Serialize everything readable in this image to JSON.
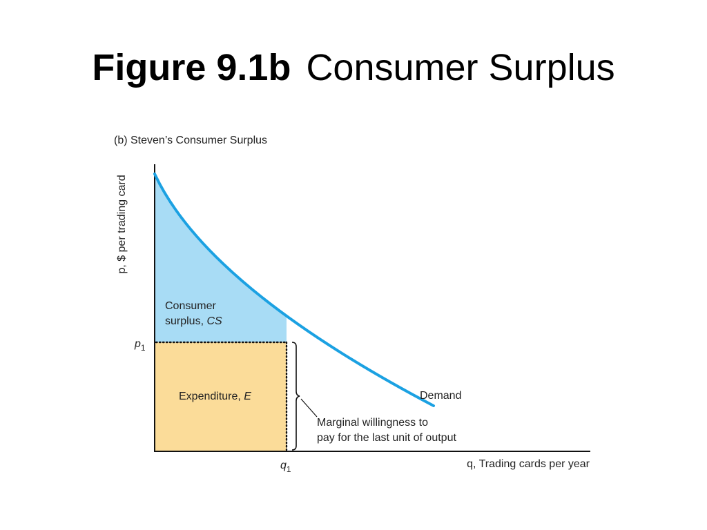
{
  "slide": {
    "title_bold": "Figure 9.1b",
    "title_rest": "Consumer Surplus"
  },
  "chart_data": {
    "type": "area",
    "subtitle": "(b) Steven’s Consumer Surplus",
    "ylabel": "p, $ per trading card",
    "xlabel": "q, Trading cards per year",
    "x_ticks": [
      {
        "label": "q",
        "sub": "1"
      }
    ],
    "y_ticks": [
      {
        "label": "p",
        "sub": "1"
      }
    ],
    "series": [
      {
        "name": "Demand",
        "role": "demand-curve"
      }
    ],
    "regions": [
      {
        "label": "Consumer surplus, CS",
        "color": "#a8dcf5"
      },
      {
        "label": "Expenditure, E",
        "color": "#fbdc99"
      }
    ],
    "annotations": [
      {
        "label": "Marginal willingness to pay for the last unit of output"
      }
    ],
    "curve_color": "#1ba1e2",
    "dotted_guides": true
  }
}
